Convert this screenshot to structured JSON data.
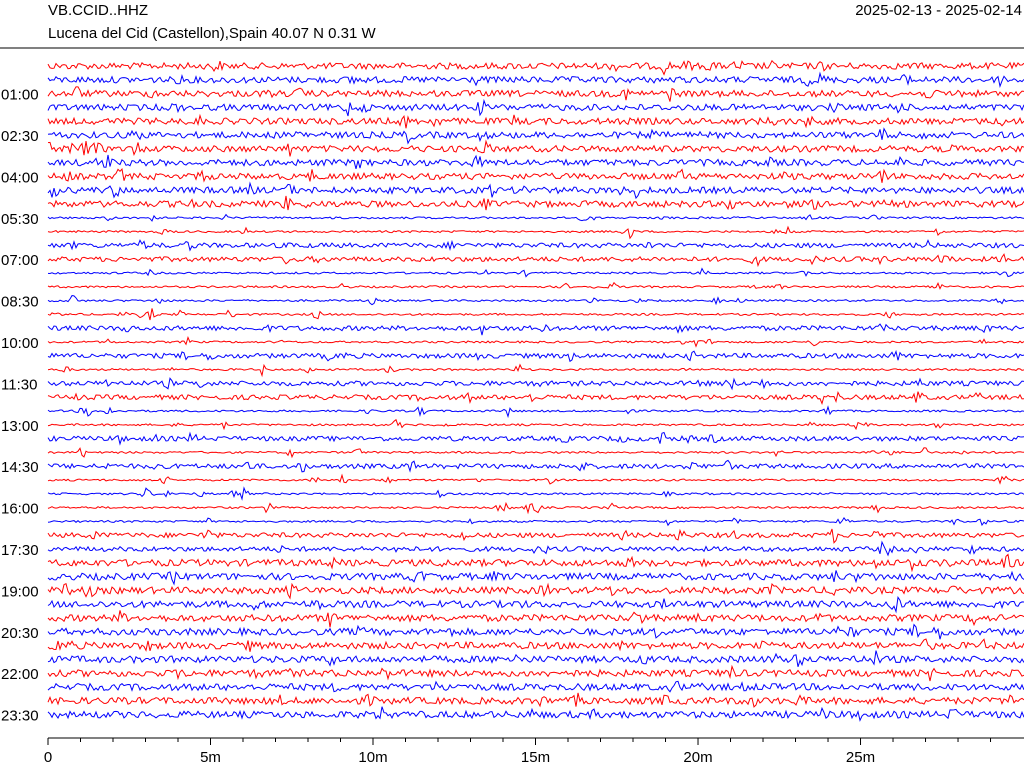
{
  "header": {
    "station": "VB.CCID..HHZ",
    "location": "Lucena del Cid (Castellon),Spain  40.07 N 0.31 W",
    "dates": "2025-02-13 - 2025-02-14"
  },
  "chart_data": {
    "type": "helicorder",
    "row_labels": [
      "01:00",
      "02:30",
      "04:00",
      "05:30",
      "07:00",
      "08:30",
      "10:00",
      "11:30",
      "13:00",
      "14:30",
      "16:00",
      "17:30",
      "19:00",
      "20:30",
      "22:00",
      "23:30"
    ],
    "colors": [
      "#ff0000",
      "#0000ff"
    ],
    "xlim": [
      0,
      30
    ],
    "xticks": [
      0,
      {
        "value": 5,
        "label": "5m"
      },
      {
        "value": 10,
        "label": "10m"
      },
      {
        "value": 15,
        "label": "15m"
      },
      {
        "value": 20,
        "label": "20m"
      },
      {
        "value": 25,
        "label": "25m"
      }
    ],
    "xminorticks": [
      1,
      2,
      3,
      4,
      6,
      7,
      8,
      9,
      11,
      12,
      13,
      14,
      16,
      17,
      18,
      19,
      21,
      22,
      23,
      24,
      26,
      27,
      28,
      29
    ]
  }
}
